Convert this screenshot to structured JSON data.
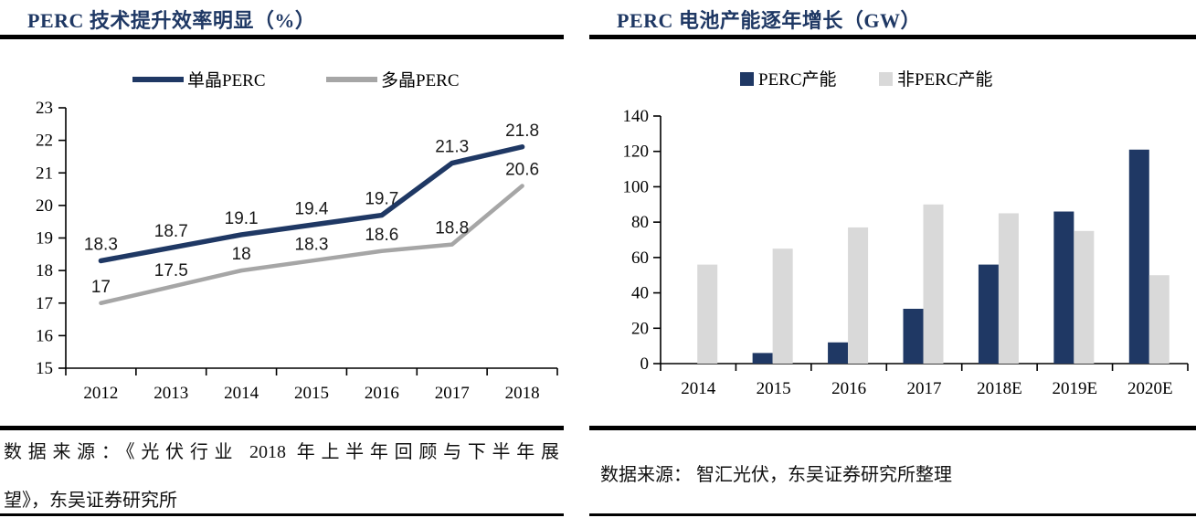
{
  "colors": {
    "navy": "#1f3864",
    "gray_line": "#a6a6a6",
    "gray_bar": "#d9d9d9",
    "rule_black": "#000000",
    "axis_black": "#000000"
  },
  "left_panel": {
    "title": "PERC 技术提升效率明显（%）",
    "source_line1": "数据来源：《光伏行业 2018 年上半年回顾与下半年展",
    "source_line2": "望》，东吴证券研究所"
  },
  "right_panel": {
    "title": "PERC 电池产能逐年增长（GW）",
    "source": "数据来源： 智汇光伏，东吴证券研究所整理"
  },
  "chart_data": [
    {
      "type": "line",
      "title": "PERC 技术提升效率明显（%）",
      "categories": [
        "2012",
        "2013",
        "2014",
        "2015",
        "2016",
        "2017",
        "2018"
      ],
      "series": [
        {
          "name": "单晶PERC",
          "color": "#1f3864",
          "values": [
            18.3,
            18.7,
            19.1,
            19.4,
            19.7,
            21.3,
            21.8
          ]
        },
        {
          "name": "多晶PERC",
          "color": "#a6a6a6",
          "values": [
            17,
            17.5,
            18,
            18.3,
            18.6,
            18.8,
            20.6
          ]
        }
      ],
      "xlabel": "",
      "ylabel": "",
      "ylim": [
        15,
        23
      ],
      "ytick_step": 1,
      "yticks": [
        15,
        16,
        17,
        18,
        19,
        20,
        21,
        22,
        23
      ],
      "grid": false,
      "legend_position": "top",
      "data_labels": true
    },
    {
      "type": "bar",
      "title": "PERC 电池产能逐年增长（GW）",
      "categories": [
        "2014",
        "2015",
        "2016",
        "2017",
        "2018E",
        "2019E",
        "2020E"
      ],
      "series": [
        {
          "name": "PERC产能",
          "color": "#1f3864",
          "values": [
            0,
            6,
            12,
            31,
            56,
            86,
            121
          ]
        },
        {
          "name": "非PERC产能",
          "color": "#d9d9d9",
          "values": [
            56,
            65,
            77,
            90,
            85,
            75,
            50
          ]
        }
      ],
      "xlabel": "",
      "ylabel": "",
      "ylim": [
        0,
        140
      ],
      "ytick_step": 20,
      "yticks": [
        0,
        20,
        40,
        60,
        80,
        100,
        120,
        140
      ],
      "grid": false,
      "legend_position": "top",
      "data_labels": false
    }
  ]
}
